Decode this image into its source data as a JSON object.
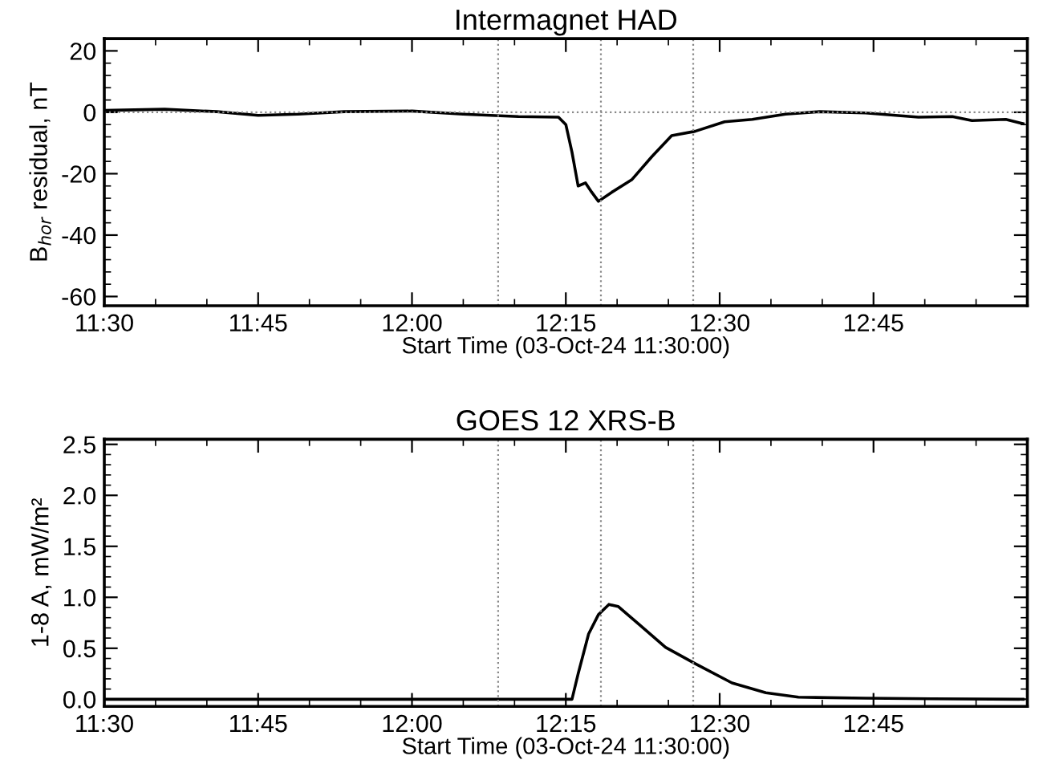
{
  "chart_data": [
    {
      "type": "line",
      "title": "Intermagnet HAD",
      "xlabel": "Start Time (03-Oct-24 11:30:00)",
      "ylabel": "B$_{hor}$ residual, nT",
      "series": [
        {
          "color": "#000000",
          "x": [
            11.5,
            11.598,
            11.683,
            11.75,
            11.815,
            11.89,
            12.0,
            12.083,
            12.173,
            12.238,
            12.25,
            12.26,
            12.27,
            12.282,
            12.292,
            12.303,
            12.325,
            12.357,
            12.39,
            12.422,
            12.46,
            12.508,
            12.553,
            12.607,
            12.662,
            12.737,
            12.823,
            12.878,
            12.91,
            12.965,
            12.993
          ],
          "values": [
            0.6,
            1.0,
            0.2,
            -1,
            -0.6,
            0.2,
            0.4,
            -0.6,
            -1.4,
            -1.6,
            -4,
            -13,
            -24,
            -23,
            -26,
            -29,
            -26,
            -22,
            -14.4,
            -7.6,
            -6.2,
            -3.1,
            -2.3,
            -0.6,
            0.2,
            -0.2,
            -1.6,
            -1.4,
            -2.7,
            -2.3,
            -3.7
          ]
        }
      ],
      "xlim": [
        11.5,
        13.0
      ],
      "ylim": [
        -63,
        24
      ],
      "xticks": [
        {
          "value": 11.5,
          "label": "11:30"
        },
        {
          "value": 11.75,
          "label": "11:45"
        },
        {
          "value": 12.0,
          "label": "12:00"
        },
        {
          "value": 12.25,
          "label": "12:15"
        },
        {
          "value": 12.5,
          "label": "12:30"
        },
        {
          "value": 12.75,
          "label": "12:45"
        }
      ],
      "yticks": [
        -60,
        -40,
        -20,
        0,
        20
      ],
      "ref_lines": [
        {
          "axis": "x",
          "value": 12.14,
          "line_style": "dotted"
        },
        {
          "axis": "x",
          "value": 12.307,
          "line_style": "dotted"
        },
        {
          "axis": "x",
          "value": 12.457,
          "line_style": "dotted"
        },
        {
          "axis": "y",
          "value": 0,
          "line_style": "dotted"
        }
      ],
      "grid": false,
      "line_style": "solid",
      "marker": "none"
    },
    {
      "type": "line",
      "title": "GOES 12 XRS-B",
      "xlabel": "Start Time (03-Oct-24 11:30:00)",
      "ylabel": "1-8 A, mW/m²",
      "series": [
        {
          "color": "#000000",
          "x": [
            11.5,
            12.243,
            12.26,
            12.27,
            12.287,
            12.303,
            12.32,
            12.335,
            12.368,
            12.412,
            12.46,
            12.52,
            12.575,
            12.628,
            12.737,
            12.845,
            12.993
          ],
          "values": [
            0.0,
            0.0,
            0.0,
            0.25,
            0.64,
            0.83,
            0.93,
            0.91,
            0.74,
            0.51,
            0.35,
            0.16,
            0.064,
            0.02,
            0.01,
            0.005,
            0.0
          ]
        }
      ],
      "xlim": [
        11.5,
        13.0
      ],
      "ylim": [
        -0.07,
        2.55
      ],
      "xticks": [
        {
          "value": 11.5,
          "label": "11:30"
        },
        {
          "value": 11.75,
          "label": "11:45"
        },
        {
          "value": 12.0,
          "label": "12:00"
        },
        {
          "value": 12.25,
          "label": "12:15"
        },
        {
          "value": 12.5,
          "label": "12:30"
        },
        {
          "value": 12.75,
          "label": "12:45"
        }
      ],
      "yticks": [
        {
          "value": 0,
          "label": "0.0"
        },
        {
          "value": 0.5,
          "label": "0.5"
        },
        {
          "value": 1,
          "label": "1.0"
        },
        {
          "value": 1.5,
          "label": "1.5"
        },
        {
          "value": 2,
          "label": "2.0"
        },
        {
          "value": 2.5,
          "label": "2.5"
        }
      ],
      "ref_lines": [
        {
          "axis": "x",
          "value": 12.14,
          "line_style": "dotted"
        },
        {
          "axis": "x",
          "value": 12.307,
          "line_style": "dotted"
        },
        {
          "axis": "x",
          "value": 12.457,
          "line_style": "dotted"
        }
      ],
      "grid": false,
      "line_style": "solid",
      "marker": "none"
    }
  ]
}
